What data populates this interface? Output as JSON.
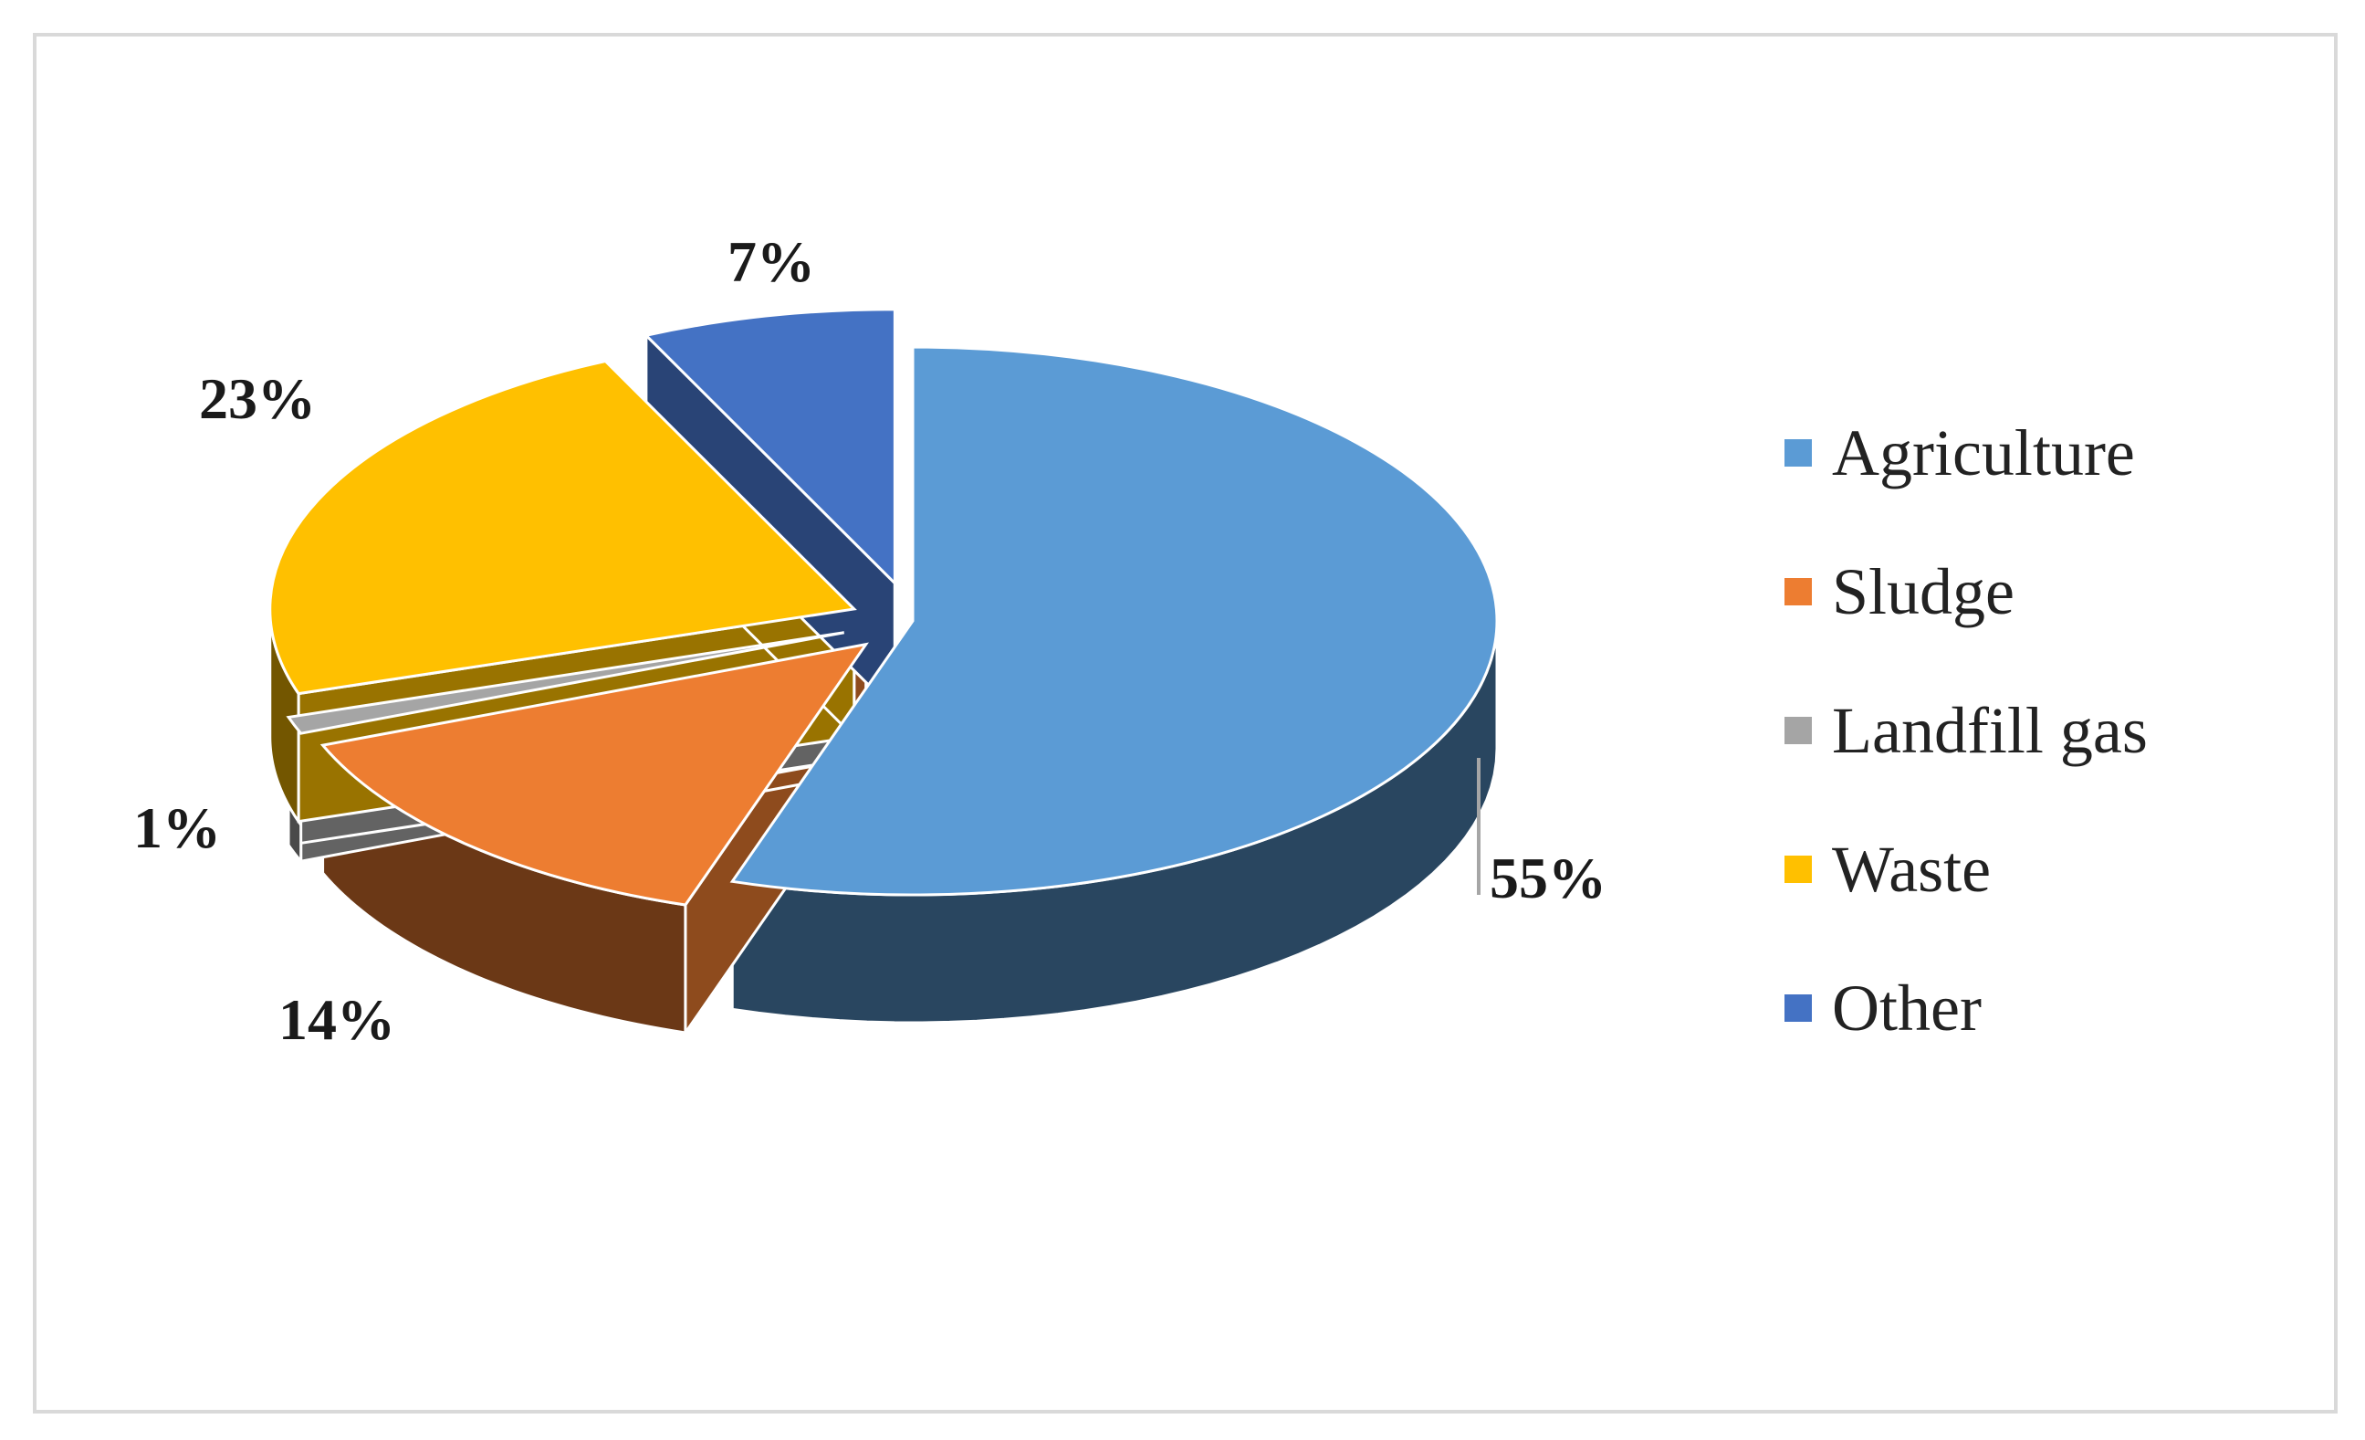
{
  "chart_data": {
    "type": "pie",
    "style": "3d-exploded",
    "categories": [
      "Agriculture",
      "Sludge",
      "Landfill gas",
      "Waste",
      "Other"
    ],
    "values": [
      55,
      14,
      1,
      23,
      7
    ],
    "value_labels": [
      "55%",
      "14%",
      "1%",
      "23%",
      "7%"
    ],
    "colors": [
      "#5b9bd5",
      "#ed7d31",
      "#a5a5a5",
      "#ffc000",
      "#4472c4"
    ],
    "legend_position": "right"
  }
}
